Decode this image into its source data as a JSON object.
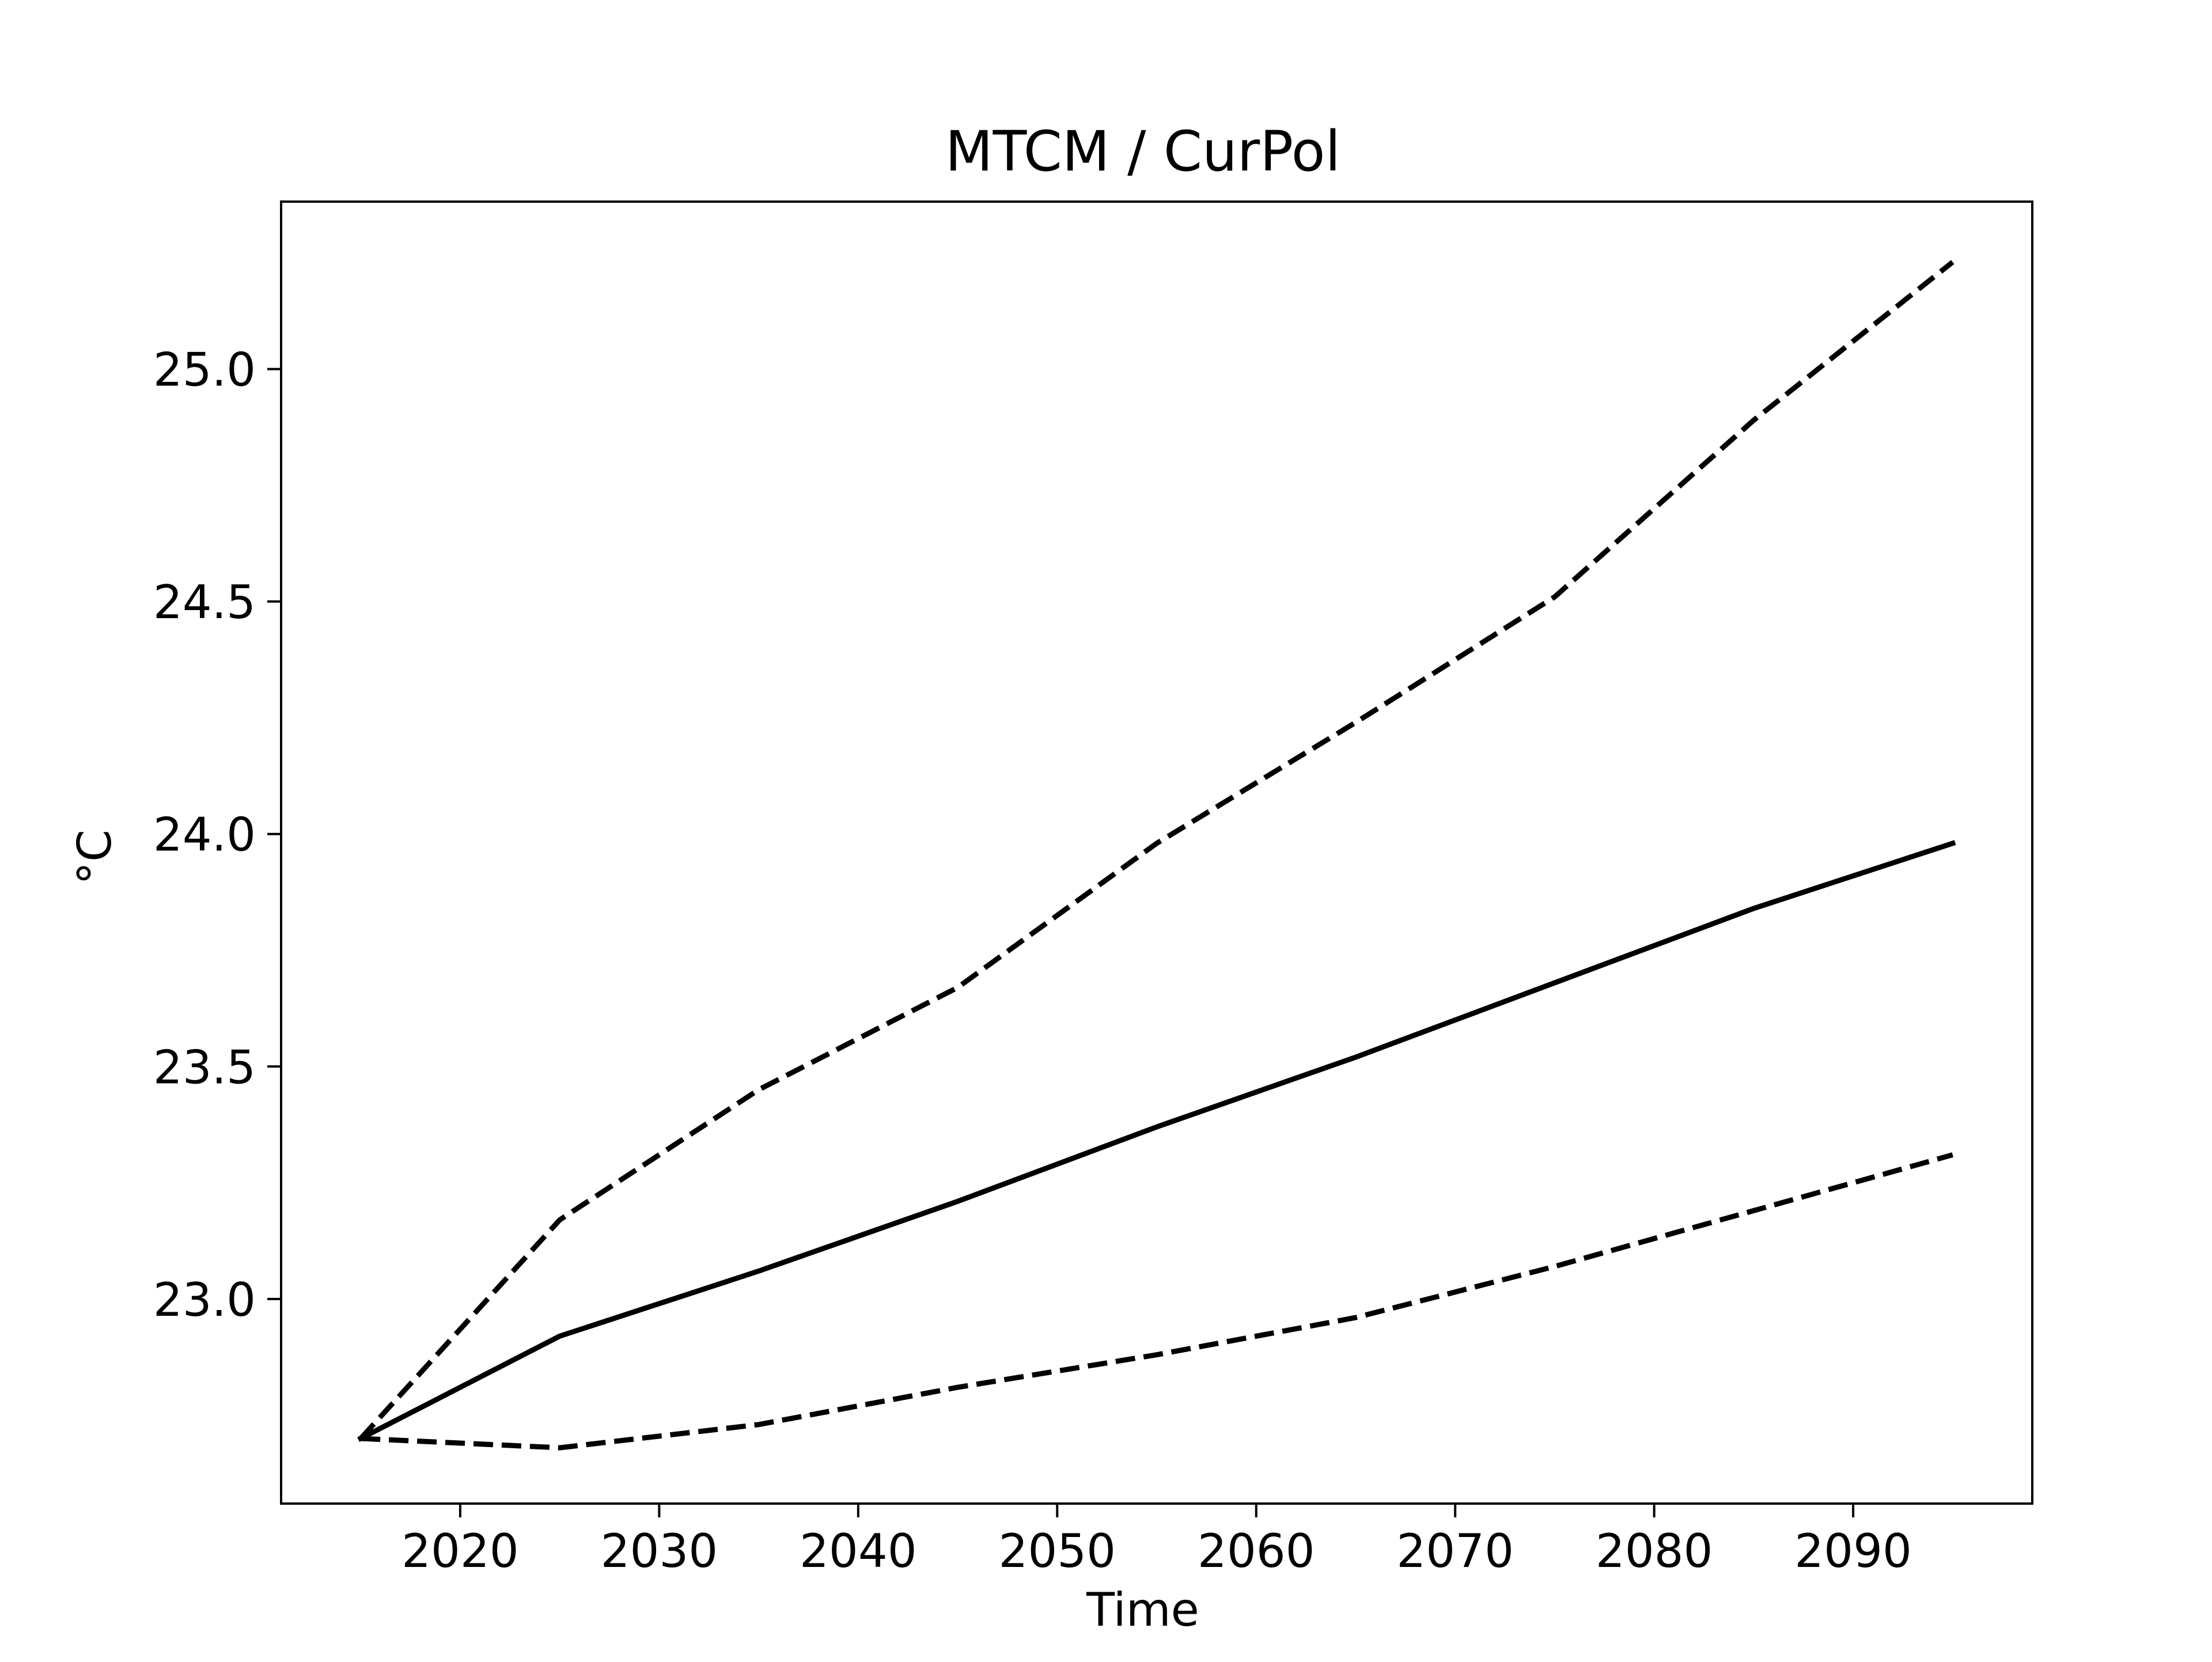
{
  "chart_data": {
    "type": "line",
    "title": "MTCM / CurPol",
    "xlabel": "Time",
    "ylabel": "°C",
    "xlim": [
      2011,
      2099
    ],
    "ylim": [
      22.56,
      25.36
    ],
    "xticks": [
      2020,
      2030,
      2040,
      2050,
      2060,
      2070,
      2080,
      2090
    ],
    "yticks": [
      23.0,
      23.5,
      24.0,
      24.5,
      25.0
    ],
    "ytick_labels": [
      "23.0",
      "23.5",
      "24.0",
      "24.5",
      "25.0"
    ],
    "grid": false,
    "legend": "none",
    "x": [
      2015,
      2025,
      2035,
      2045,
      2055,
      2065,
      2075,
      2085,
      2095
    ],
    "series": [
      {
        "style": "dashed",
        "color": "#000000",
        "values": [
          22.7,
          23.17,
          23.45,
          23.67,
          23.98,
          24.24,
          24.51,
          24.89,
          25.23
        ]
      },
      {
        "style": "solid",
        "color": "#000000",
        "values": [
          22.7,
          22.92,
          23.06,
          23.21,
          23.37,
          23.52,
          23.68,
          23.84,
          23.98
        ]
      },
      {
        "style": "dashed",
        "color": "#000000",
        "values": [
          22.7,
          22.68,
          22.73,
          22.81,
          22.88,
          22.96,
          23.07,
          23.19,
          23.31
        ]
      }
    ]
  }
}
